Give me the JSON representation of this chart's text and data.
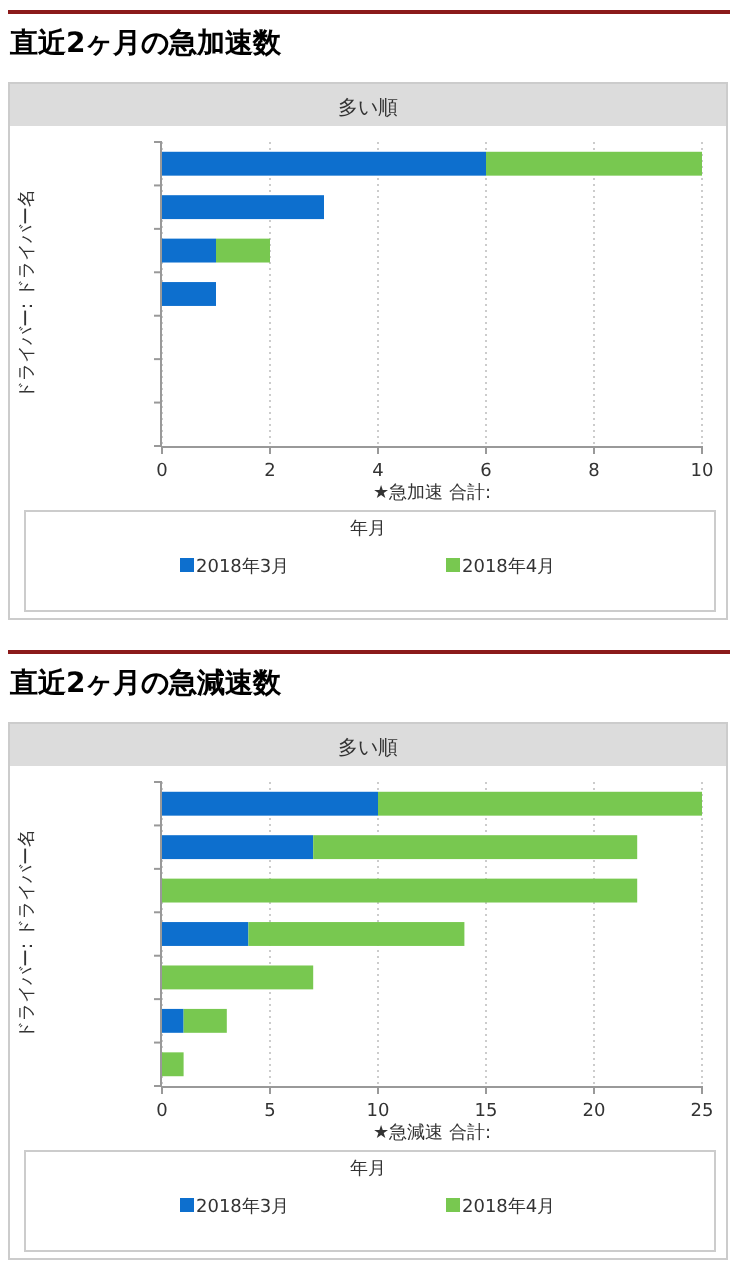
{
  "chart_data": [
    {
      "type": "bar",
      "orientation": "horizontal",
      "stacked": true,
      "title": "直近2ヶ月の急加速数",
      "subtitle": "多い順",
      "xlabel": "★急加速 合計:",
      "ylabel": "ドライバー: ドライバー名",
      "legend_title": "年月",
      "legend": "bottom",
      "grid": "x",
      "categories": [
        null,
        null,
        null,
        null,
        null,
        null,
        null
      ],
      "xlim": [
        0,
        10
      ],
      "xticks": [
        0,
        2,
        4,
        6,
        8,
        10
      ],
      "series": [
        {
          "name": "2018年3月",
          "color": "#0d6fce",
          "values": [
            6,
            3,
            1,
            1,
            0,
            0,
            0
          ]
        },
        {
          "name": "2018年4月",
          "color": "#78c850",
          "values": [
            4,
            0,
            1,
            0,
            0,
            0,
            0
          ]
        }
      ]
    },
    {
      "type": "bar",
      "orientation": "horizontal",
      "stacked": true,
      "title": "直近2ヶ月の急減速数",
      "subtitle": "多い順",
      "xlabel": "★急減速 合計:",
      "ylabel": "ドライバー: ドライバー名",
      "legend_title": "年月",
      "legend": "bottom",
      "grid": "x",
      "categories": [
        null,
        null,
        null,
        null,
        null,
        null,
        null
      ],
      "xlim": [
        0,
        25
      ],
      "xticks": [
        0,
        5,
        10,
        15,
        20,
        25
      ],
      "series": [
        {
          "name": "2018年3月",
          "color": "#0d6fce",
          "values": [
            10,
            7,
            0,
            4,
            0,
            1,
            0
          ]
        },
        {
          "name": "2018年4月",
          "color": "#78c850",
          "values": [
            15,
            15,
            22,
            10,
            7,
            2,
            1
          ]
        }
      ]
    }
  ]
}
